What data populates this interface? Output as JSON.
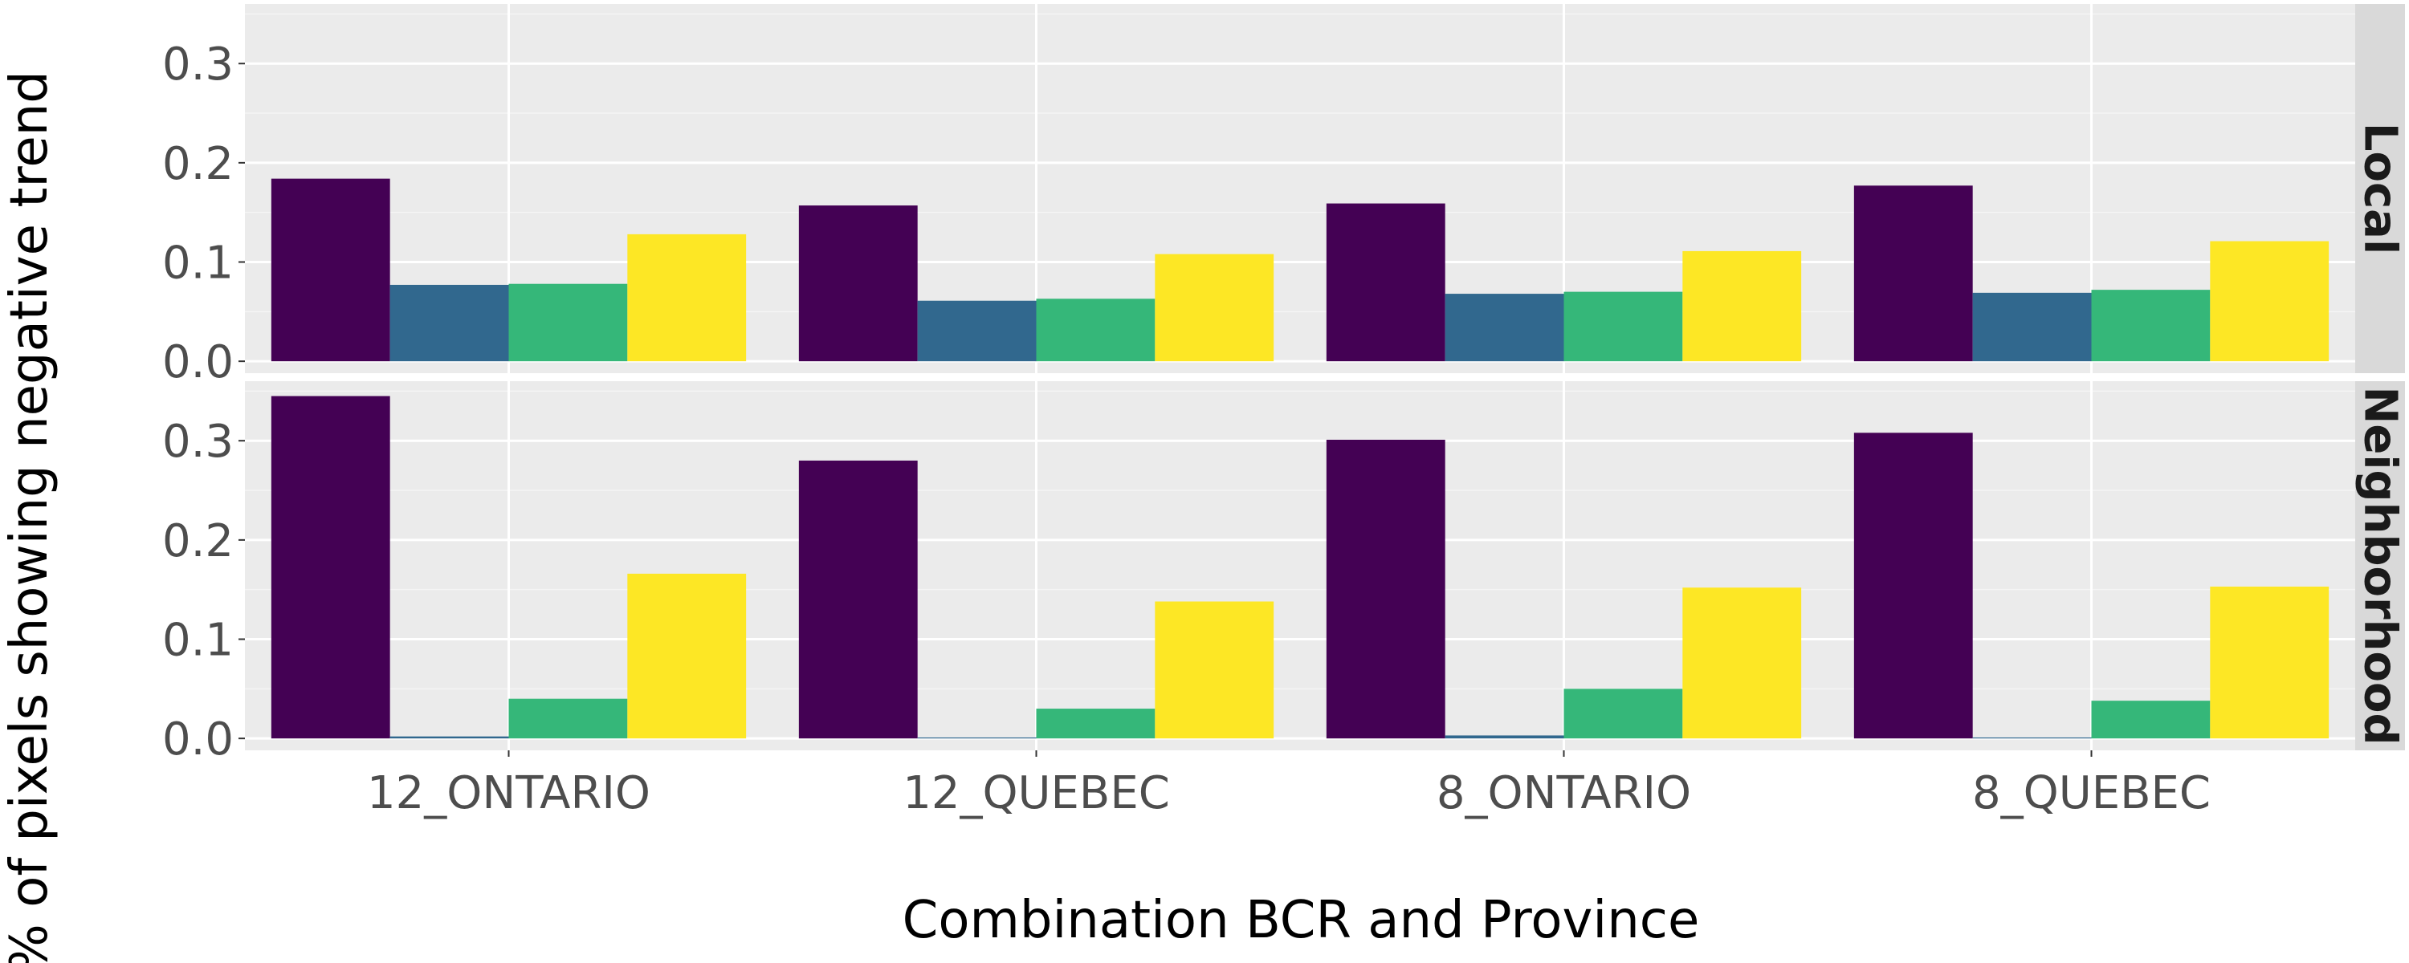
{
  "chart_data": {
    "type": "bar",
    "xlabel": "Combination BCR and Province",
    "ylabel": "% of pixels showing negative trend",
    "categories": [
      "12_ONTARIO",
      "12_QUEBEC",
      "8_ONTARIO",
      "8_QUEBEC"
    ],
    "ylim": [
      -0.012,
      0.36
    ],
    "yticks": [
      0.0,
      0.1,
      0.2,
      0.3
    ],
    "ytick_labels": [
      "0.0",
      "0.1",
      "0.2",
      "0.3"
    ],
    "grid": true,
    "series_colors": [
      "#440154",
      "#31688e",
      "#35b779",
      "#fde725"
    ],
    "panels": [
      {
        "label": "Local",
        "values": [
          [
            0.184,
            0.077,
            0.078,
            0.128
          ],
          [
            0.157,
            0.061,
            0.063,
            0.108
          ],
          [
            0.159,
            0.068,
            0.07,
            0.111
          ],
          [
            0.177,
            0.069,
            0.072,
            0.121
          ]
        ]
      },
      {
        "label": "Neighborhood",
        "values": [
          [
            0.345,
            0.002,
            0.04,
            0.166
          ],
          [
            0.28,
            0.001,
            0.03,
            0.138
          ],
          [
            0.301,
            0.003,
            0.05,
            0.152
          ],
          [
            0.308,
            0.001,
            0.038,
            0.153
          ]
        ]
      }
    ]
  }
}
